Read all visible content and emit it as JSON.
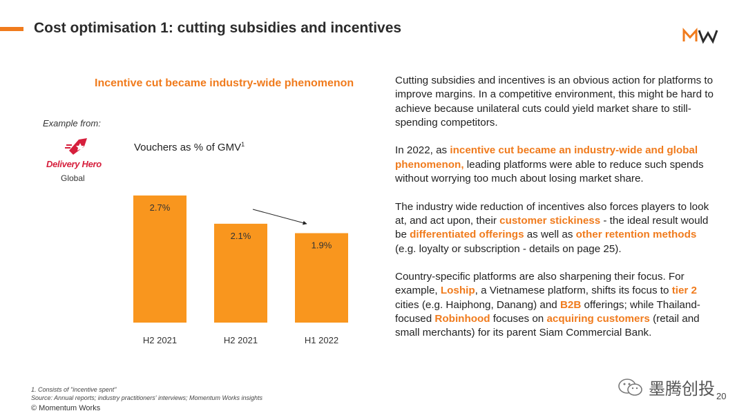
{
  "header": {
    "title": "Cost optimisation 1: cutting subsidies and incentives",
    "accent_color": "#f07b1d",
    "logo_icon": "momentum-works-logo-icon"
  },
  "left_panel": {
    "heading": "Incentive cut became industry-wide phenomenon",
    "example_from": "Example from:",
    "company": {
      "name": "Delivery Hero",
      "region": "Global",
      "logo_color": "#d61f3c"
    }
  },
  "chart_data": {
    "type": "bar",
    "title": "Vouchers as % of GMV",
    "title_footnote": "1",
    "categories": [
      "H2 2021",
      "H2 2021",
      "H1 2022"
    ],
    "values": [
      2.7,
      2.1,
      1.9
    ],
    "labels": [
      "2.7%",
      "2.1%",
      "1.9%"
    ],
    "bar_color": "#f9961e",
    "ylim": [
      0,
      2.7
    ],
    "grid": false,
    "annotation": "downward-trend-arrow"
  },
  "body": {
    "p1": "Cutting subsidies and incentives is an obvious action for platforms to improve margins. In a competitive environment, this might be hard to achieve because unilateral cuts could yield market share to still-spending competitors.",
    "p2_a": "In 2022, as ",
    "p2_hl1": "incentive cut became an industry-wide and global phenomenon,",
    "p2_b": " leading platforms were able to reduce such spends without worrying too much about losing market share.",
    "p3_a": "The industry wide reduction of incentives also forces players to look at, and act upon, their ",
    "p3_hl1": "customer stickiness",
    "p3_b": " - the ideal result would be ",
    "p3_hl2": "differentiated offerings",
    "p3_c": " as well as ",
    "p3_hl3": "other retention methods",
    "p3_d": " (e.g. loyalty or subscription - details on page 25).",
    "p4_a": "Country-specific platforms are also sharpening their focus. For example, ",
    "p4_hl1": "Loship",
    "p4_b": ", a Vietnamese platform, shifts its focus to ",
    "p4_hl2": "tier 2",
    "p4_c": " cities (e.g. Haiphong, Danang) and ",
    "p4_hl3": "B2B",
    "p4_d": " offerings; while Thailand-focused ",
    "p4_hl4": "Robinhood",
    "p4_e": " focuses on ",
    "p4_hl5": "acquiring customers",
    "p4_f": " (retail and small merchants) for its parent Siam Commercial Bank."
  },
  "footer": {
    "footnote_1": "1. Consists of \"incentive spent\"",
    "source": "Source: Annual reports; industry practitioners' interviews; Momentum Works insights",
    "copyright": "© Momentum Works",
    "page_number": "20",
    "watermark": "墨腾创投"
  }
}
